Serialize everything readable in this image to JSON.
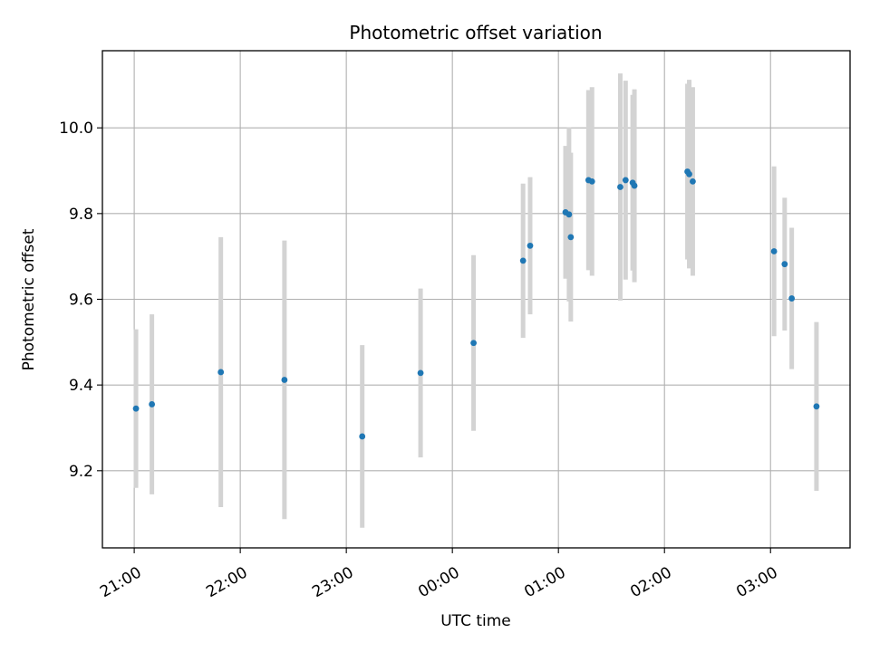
{
  "chart_data": {
    "type": "scatter",
    "title": "Photometric offset variation",
    "xlabel": "UTC time",
    "ylabel": "Photometric offset",
    "x_tick_labels": [
      "21:00",
      "22:00",
      "23:00",
      "00:00",
      "01:00",
      "02:00",
      "03:00"
    ],
    "y_tick_labels": [
      "9.2",
      "9.4",
      "9.6",
      "9.8",
      "10.0"
    ],
    "y_ticks": [
      9.2,
      9.4,
      9.6,
      9.8,
      10.0
    ],
    "ylim": [
      9.02,
      10.18
    ],
    "grid": true,
    "colors": {
      "point": "#1f77b4",
      "errorbar": "#d3d3d3",
      "grid": "#b0b0b0"
    },
    "points": [
      {
        "time": "21:01",
        "y": 9.345,
        "err": 0.185
      },
      {
        "time": "21:10",
        "y": 9.355,
        "err": 0.21
      },
      {
        "time": "21:49",
        "y": 9.43,
        "err": 0.315
      },
      {
        "time": "22:25",
        "y": 9.412,
        "err": 0.325
      },
      {
        "time": "23:09",
        "y": 9.28,
        "err": 0.213
      },
      {
        "time": "23:42",
        "y": 9.428,
        "err": 0.197
      },
      {
        "time": "00:12",
        "y": 9.498,
        "err": 0.205
      },
      {
        "time": "00:40",
        "y": 9.69,
        "err": 0.18
      },
      {
        "time": "00:44",
        "y": 9.725,
        "err": 0.16
      },
      {
        "time": "01:04",
        "y": 9.803,
        "err": 0.155
      },
      {
        "time": "01:06",
        "y": 9.798,
        "err": 0.203
      },
      {
        "time": "01:07",
        "y": 9.745,
        "err": 0.197
      },
      {
        "time": "01:17",
        "y": 9.878,
        "err": 0.21
      },
      {
        "time": "01:19",
        "y": 9.875,
        "err": 0.22
      },
      {
        "time": "01:35",
        "y": 9.862,
        "err": 0.265
      },
      {
        "time": "01:38",
        "y": 9.878,
        "err": 0.232
      },
      {
        "time": "01:42",
        "y": 9.872,
        "err": 0.205
      },
      {
        "time": "01:43",
        "y": 9.865,
        "err": 0.225
      },
      {
        "time": "02:13",
        "y": 9.898,
        "err": 0.205
      },
      {
        "time": "02:14",
        "y": 9.892,
        "err": 0.22
      },
      {
        "time": "02:16",
        "y": 9.875,
        "err": 0.22
      },
      {
        "time": "03:02",
        "y": 9.712,
        "err": 0.198
      },
      {
        "time": "03:08",
        "y": 9.682,
        "err": 0.155
      },
      {
        "time": "03:12",
        "y": 9.602,
        "err": 0.165
      },
      {
        "time": "03:26",
        "y": 9.35,
        "err": 0.197
      }
    ]
  }
}
